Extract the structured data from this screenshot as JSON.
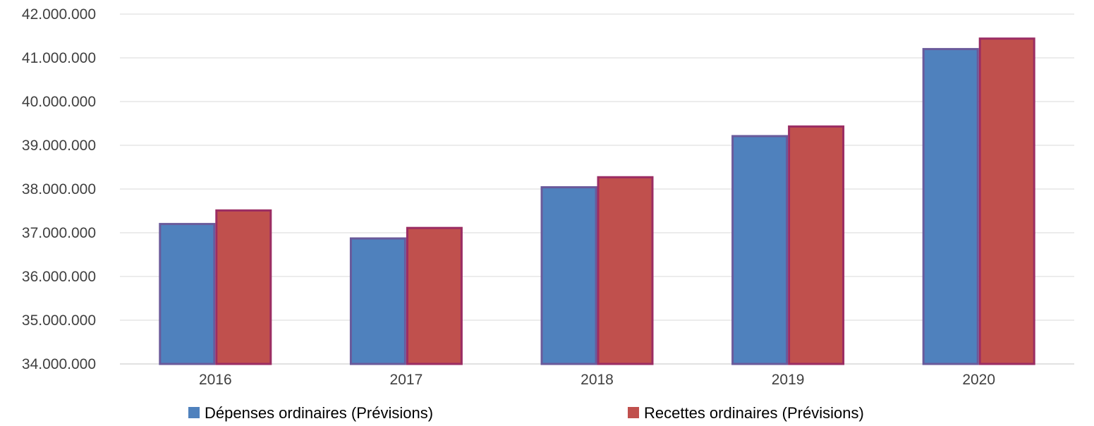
{
  "chart_data": {
    "type": "bar",
    "categories": [
      "2016",
      "2017",
      "2018",
      "2019",
      "2020"
    ],
    "series": [
      {
        "name": "Dépenses ordinaires (Prévisions)",
        "values": [
          37200000,
          36870000,
          38040000,
          39210000,
          41200000
        ],
        "fill": "#4f81bd",
        "stroke": "#6a5a9b"
      },
      {
        "name": "Recettes ordinaires (Prévisions)",
        "values": [
          37510000,
          37110000,
          38270000,
          39430000,
          41440000
        ],
        "fill": "#c0504d",
        "stroke": "#9b2d63"
      }
    ],
    "ylim": [
      34000000,
      42000000
    ],
    "yticks": [
      34000000,
      35000000,
      36000000,
      37000000,
      38000000,
      39000000,
      40000000,
      41000000,
      42000000
    ],
    "ytick_labels": [
      "34.000.000",
      "35.000.000",
      "36.000.000",
      "37.000.000",
      "38.000.000",
      "39.000.000",
      "40.000.000",
      "41.000.000",
      "42.000.000"
    ],
    "title": "",
    "xlabel": "",
    "ylabel": "",
    "grid": true,
    "legend_position": "bottom"
  }
}
